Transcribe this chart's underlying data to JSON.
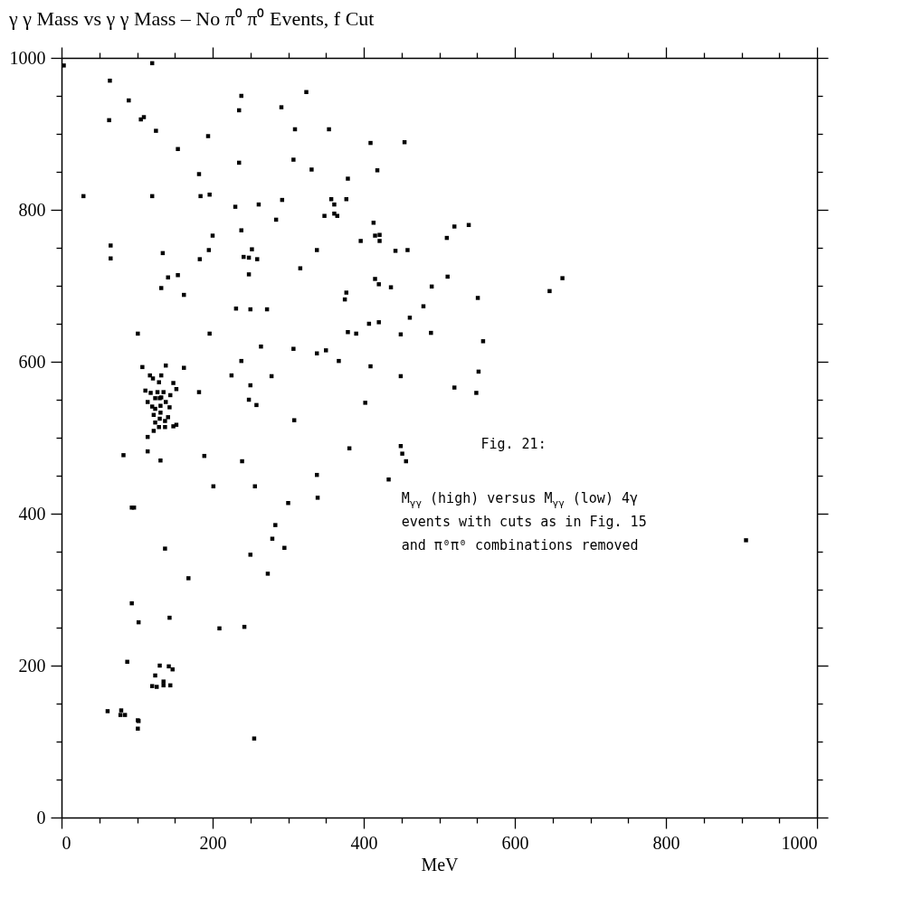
{
  "chart_data": {
    "type": "scatter",
    "title": "γ γ Mass  vs  γ γ Mass – No π⁰ π⁰ Events, f Cut",
    "xlabel": "MeV",
    "x": [
      3,
      64,
      120,
      89,
      238,
      324,
      235,
      291,
      63,
      105,
      109,
      125,
      194,
      309,
      154,
      235,
      307,
      331,
      182,
      29,
      120,
      184,
      196,
      230,
      261,
      292,
      284,
      238,
      200,
      65,
      65,
      134,
      195,
      183,
      252,
      241,
      248,
      259,
      338,
      316,
      141,
      154,
      248,
      132,
      162,
      231,
      250,
      272,
      101,
      196,
      264,
      307,
      338,
      354,
      409,
      454,
      379,
      418,
      357,
      361,
      377,
      348,
      361,
      365,
      413,
      415,
      421,
      396,
      421,
      520,
      539,
      510,
      442,
      458,
      415,
      420,
      436,
      490,
      511,
      377,
      375,
      551,
      479,
      663,
      646,
      461,
      407,
      420,
      379,
      390,
      449,
      489,
      558,
      350,
      367,
      409,
      238,
      107,
      138,
      162,
      225,
      278,
      117,
      121,
      132,
      129,
      148,
      250,
      152,
      111,
      118,
      127,
      135,
      144,
      182,
      124,
      130,
      132,
      248,
      258,
      114,
      138,
      120,
      124,
      131,
      143,
      122,
      131,
      130,
      141,
      137,
      124,
      152,
      148,
      129,
      137,
      122,
      114,
      308,
      82,
      114,
      131,
      189,
      239,
      338,
      201,
      256,
      339,
      300,
      93,
      96,
      283,
      279,
      295,
      250,
      137,
      273,
      168,
      449,
      552,
      520,
      549,
      402,
      381,
      449,
      451,
      456,
      433,
      93,
      102,
      143,
      209,
      242,
      87,
      130,
      142,
      147,
      124,
      135,
      120,
      126,
      135,
      144,
      61,
      79,
      78,
      84,
      101,
      102,
      101,
      255,
      906
    ],
    "values": [
      990,
      970,
      993,
      944,
      950,
      955,
      931,
      935,
      918,
      919,
      922,
      904,
      897,
      906,
      880,
      862,
      866,
      853,
      847,
      818,
      818,
      818,
      820,
      804,
      807,
      813,
      787,
      773,
      766,
      753,
      736,
      743,
      747,
      735,
      748,
      738,
      737,
      735,
      747,
      723,
      711,
      714,
      715,
      697,
      688,
      670,
      669,
      669,
      637,
      637,
      620,
      617,
      611,
      906,
      888,
      889,
      841,
      852,
      814,
      807,
      814,
      792,
      795,
      792,
      783,
      766,
      767,
      759,
      759,
      778,
      780,
      763,
      746,
      747,
      709,
      702,
      698,
      699,
      712,
      691,
      682,
      684,
      673,
      710,
      693,
      658,
      650,
      652,
      639,
      637,
      636,
      638,
      627,
      615,
      601,
      594,
      601,
      593,
      595,
      592,
      582,
      581,
      582,
      578,
      582,
      573,
      572,
      569,
      564,
      562,
      559,
      560,
      560,
      556,
      560,
      552,
      552,
      553,
      550,
      543,
      547,
      547,
      541,
      538,
      542,
      540,
      530,
      533,
      525,
      527,
      522,
      520,
      517,
      515,
      514,
      514,
      509,
      501,
      523,
      477,
      482,
      470,
      476,
      469,
      451,
      436,
      436,
      421,
      414,
      408,
      408,
      385,
      367,
      355,
      346,
      354,
      321,
      315,
      581,
      587,
      566,
      559,
      546,
      486,
      489,
      479,
      469,
      445,
      282,
      257,
      263,
      249,
      251,
      205,
      200,
      199,
      195,
      187,
      179,
      173,
      172,
      174,
      174,
      140,
      141,
      135,
      135,
      128,
      127,
      117,
      104,
      365
    ],
    "color": "#000000",
    "marker": "square",
    "xlim": [
      0,
      1000
    ],
    "ylim": [
      0,
      1000
    ],
    "xticks": [
      0,
      {
        "value": 50,
        "label": null
      },
      {
        "value": 100,
        "label": null
      },
      {
        "value": 150,
        "label": null
      },
      200,
      {
        "value": 250,
        "label": null
      },
      {
        "value": 300,
        "label": null
      },
      {
        "value": 350,
        "label": null
      },
      400,
      {
        "value": 450,
        "label": null
      },
      {
        "value": 500,
        "label": null
      },
      {
        "value": 550,
        "label": null
      },
      600,
      {
        "value": 650,
        "label": null
      },
      {
        "value": 700,
        "label": null
      },
      {
        "value": 750,
        "label": null
      },
      800,
      {
        "value": 850,
        "label": null
      },
      {
        "value": 900,
        "label": null
      },
      {
        "value": 950,
        "label": null
      },
      1000
    ],
    "yticks": [
      0,
      {
        "value": 50,
        "label": null
      },
      {
        "value": 100,
        "label": null
      },
      {
        "value": 150,
        "label": null
      },
      200,
      {
        "value": 250,
        "label": null
      },
      {
        "value": 300,
        "label": null
      },
      {
        "value": 350,
        "label": null
      },
      400,
      {
        "value": 450,
        "label": null
      },
      {
        "value": 500,
        "label": null
      },
      {
        "value": 550,
        "label": null
      },
      600,
      {
        "value": 650,
        "label": null
      },
      {
        "value": 700,
        "label": null
      },
      {
        "value": 750,
        "label": null
      },
      800,
      {
        "value": 850,
        "label": null
      },
      {
        "value": 900,
        "label": null
      },
      {
        "value": 950,
        "label": null
      },
      1000
    ],
    "grid": false,
    "annotations": [
      "Fig. 21:",
      "M$_{γγ}$ (high) versus M$_{γγ}$ (low) 4γ events with cuts as in Fig. 15 and π⁰π⁰ combinations removed"
    ]
  }
}
